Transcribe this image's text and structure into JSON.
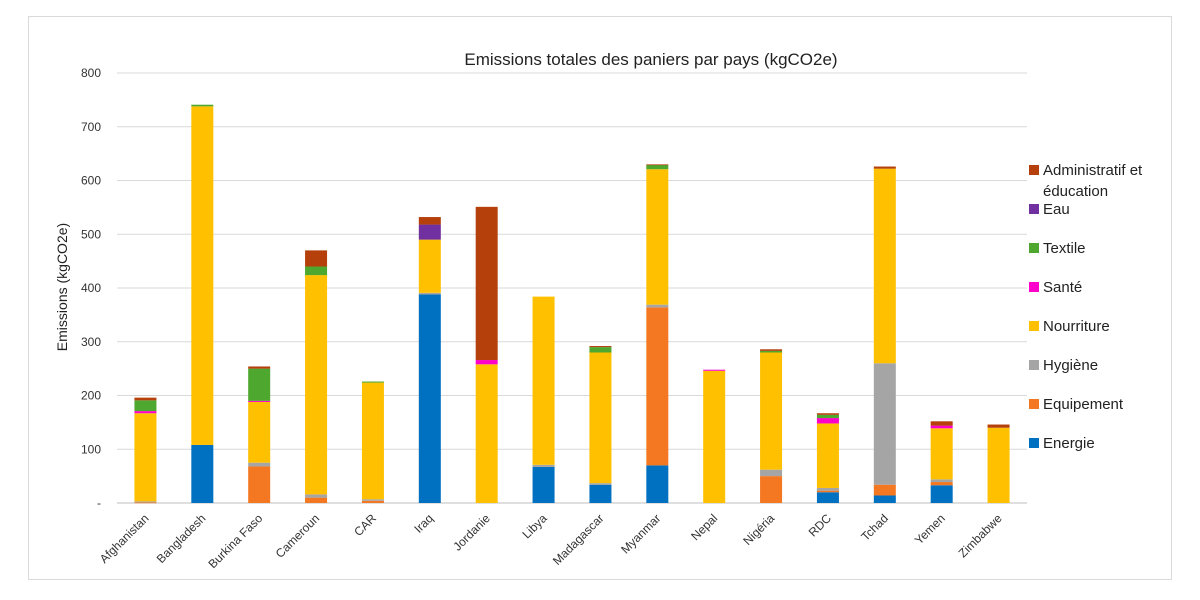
{
  "chart_data": {
    "type": "bar",
    "stacked": true,
    "title": "Emissions totales des paniers par pays (kgCO2e)",
    "xlabel": "",
    "ylabel": "Emissions (kgCO2e)",
    "ylim": [
      0,
      800
    ],
    "yticks": [
      0,
      100,
      200,
      300,
      400,
      500,
      600,
      700,
      800
    ],
    "ytick_labels": [
      "-",
      "100",
      "200",
      "300",
      "400",
      "500",
      "600",
      "700",
      "800"
    ],
    "grid": true,
    "legend_position": "right",
    "categories": [
      "Afghanistan",
      "Bangladesh",
      "Burkina Faso",
      "Cameroun",
      "CAR",
      "Iraq",
      "Jordanie",
      "Libya",
      "Madagascar",
      "Myanmar",
      "Nepal",
      "Nigéria",
      "RDC",
      "Tchad",
      "Yemen",
      "Zimbabwe"
    ],
    "series": [
      {
        "name": "Energie",
        "color": "#0070C0",
        "values": [
          0,
          108,
          0,
          0,
          0,
          388,
          0,
          67,
          34,
          70,
          0,
          0,
          20,
          14,
          33,
          0
        ]
      },
      {
        "name": "Equipement",
        "color": "#F47721",
        "values": [
          1,
          0,
          68,
          10,
          4,
          0,
          0,
          0,
          0,
          294,
          0,
          50,
          3,
          20,
          6,
          0
        ]
      },
      {
        "name": "Hygiène",
        "color": "#A5A5A5",
        "values": [
          2,
          0,
          7,
          6,
          3,
          3,
          0,
          4,
          3,
          5,
          0,
          12,
          5,
          226,
          5,
          0
        ]
      },
      {
        "name": "Nourriture",
        "color": "#FFC000",
        "values": [
          164,
          630,
          113,
          408,
          217,
          99,
          258,
          313,
          243,
          252,
          246,
          218,
          120,
          362,
          95,
          140
        ]
      },
      {
        "name": "Santé",
        "color": "#FF00CC",
        "values": [
          4,
          0,
          2,
          0,
          0,
          0,
          8,
          0,
          0,
          0,
          2,
          0,
          10,
          0,
          5,
          0
        ]
      },
      {
        "name": "Textile",
        "color": "#4EA72E",
        "values": [
          20,
          3,
          60,
          16,
          2,
          0,
          0,
          0,
          10,
          8,
          0,
          3,
          6,
          0,
          0,
          0
        ]
      },
      {
        "name": "Eau",
        "color": "#7030A0",
        "values": [
          0,
          0,
          0,
          0,
          0,
          28,
          0,
          0,
          0,
          0,
          0,
          0,
          0,
          0,
          0,
          0
        ]
      },
      {
        "name": "Administratif et éducation",
        "color": "#B5400B",
        "values": [
          5,
          0,
          4,
          30,
          0,
          14,
          285,
          0,
          2,
          1,
          0,
          3,
          3,
          4,
          8,
          6
        ]
      }
    ]
  }
}
